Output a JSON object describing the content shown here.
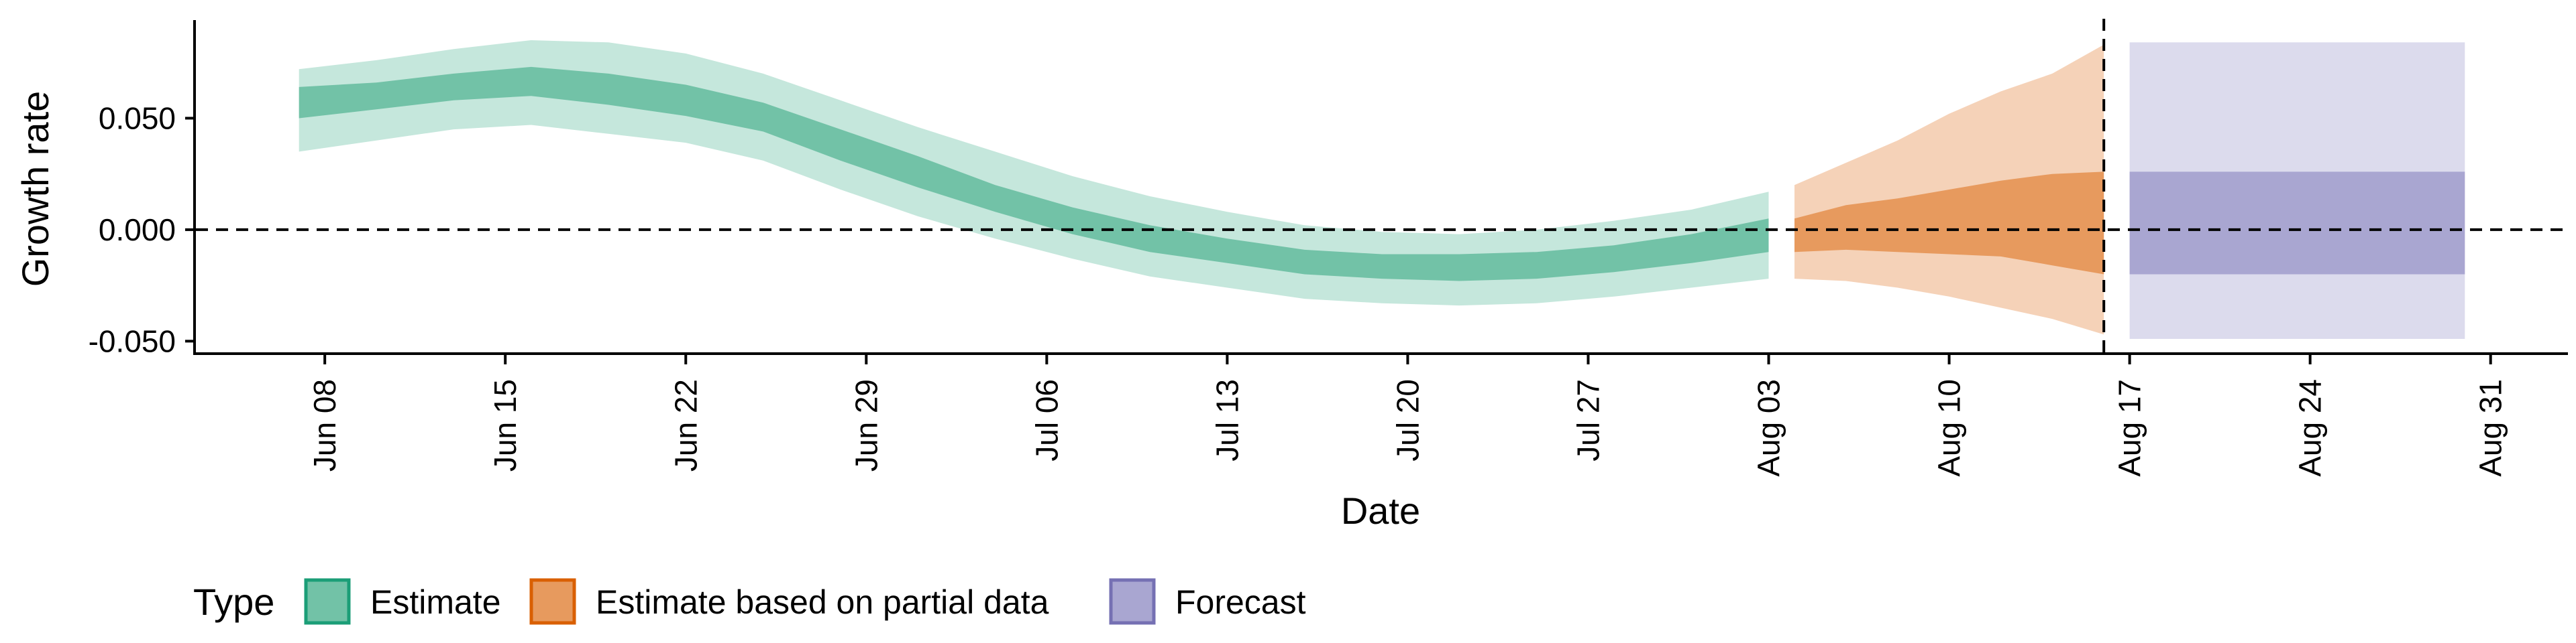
{
  "chart_data": {
    "type": "area",
    "xlabel": "Date",
    "ylabel": "Growth rate",
    "x_ticks": [
      "Jun 08",
      "Jun 15",
      "Jun 22",
      "Jun 29",
      "Jul 06",
      "Jul 13",
      "Jul 20",
      "Jul 27",
      "Aug 03",
      "Aug 10",
      "Aug 17",
      "Aug 24",
      "Aug 31"
    ],
    "y_ticks": [
      "0.050",
      "0.000",
      "-0.050"
    ],
    "y_tick_values": [
      0.05,
      0.0,
      -0.05
    ],
    "xlim": [
      "2020-06-03",
      "2020-09-03"
    ],
    "ylim": [
      -0.055,
      0.094
    ],
    "reference_lines": [
      {
        "axis": "y",
        "value": 0.0,
        "style": "dashed"
      },
      {
        "axis": "x",
        "value": "2020-08-16",
        "style": "dashed"
      }
    ],
    "legend": {
      "title": "Type",
      "position": "bottom",
      "entries": [
        {
          "label": "Estimate",
          "fill": "#72c2a7",
          "stroke": "#1b9e77"
        },
        {
          "label": "Estimate based on partial data",
          "fill": "#e79a5e",
          "stroke": "#d95f02"
        },
        {
          "label": "Forecast",
          "fill": "#a9a6d1",
          "stroke": "#7570b3"
        }
      ]
    },
    "series": [
      {
        "name": "Estimate",
        "type": "ribbon",
        "color_inner": "#72c2a7",
        "color_outer": "#c5e7dc",
        "x": [
          "2020-06-07",
          "2020-06-10",
          "2020-06-13",
          "2020-06-16",
          "2020-06-19",
          "2020-06-22",
          "2020-06-25",
          "2020-06-28",
          "2020-07-01",
          "2020-07-04",
          "2020-07-07",
          "2020-07-10",
          "2020-07-13",
          "2020-07-16",
          "2020-07-19",
          "2020-07-22",
          "2020-07-25",
          "2020-07-28",
          "2020-07-31",
          "2020-08-03"
        ],
        "outer_upper": [
          0.072,
          0.076,
          0.081,
          0.085,
          0.084,
          0.079,
          0.07,
          0.058,
          0.046,
          0.035,
          0.024,
          0.015,
          0.008,
          0.002,
          -0.001,
          -0.002,
          0.0,
          0.004,
          0.009,
          0.017
        ],
        "inner_upper": [
          0.064,
          0.066,
          0.07,
          0.073,
          0.07,
          0.065,
          0.057,
          0.045,
          0.033,
          0.02,
          0.01,
          0.002,
          -0.004,
          -0.009,
          -0.011,
          -0.011,
          -0.01,
          -0.007,
          -0.002,
          0.005
        ],
        "inner_lower": [
          0.05,
          0.054,
          0.058,
          0.06,
          0.056,
          0.051,
          0.044,
          0.031,
          0.019,
          0.008,
          -0.002,
          -0.01,
          -0.015,
          -0.02,
          -0.022,
          -0.023,
          -0.022,
          -0.019,
          -0.015,
          -0.01
        ],
        "outer_lower": [
          0.035,
          0.04,
          0.045,
          0.047,
          0.043,
          0.039,
          0.031,
          0.018,
          0.006,
          -0.004,
          -0.013,
          -0.021,
          -0.026,
          -0.031,
          -0.033,
          -0.034,
          -0.033,
          -0.03,
          -0.026,
          -0.022
        ]
      },
      {
        "name": "Estimate based on partial data",
        "type": "ribbon",
        "color_inner": "#e79a5e",
        "color_outer": "#f5d2b8",
        "x": [
          "2020-08-04",
          "2020-08-06",
          "2020-08-08",
          "2020-08-10",
          "2020-08-12",
          "2020-08-14",
          "2020-08-16"
        ],
        "outer_upper": [
          0.02,
          0.03,
          0.04,
          0.052,
          0.062,
          0.07,
          0.083
        ],
        "inner_upper": [
          0.005,
          0.011,
          0.014,
          0.018,
          0.022,
          0.025,
          0.026
        ],
        "inner_lower": [
          -0.01,
          -0.009,
          -0.01,
          -0.011,
          -0.012,
          -0.016,
          -0.02
        ],
        "outer_lower": [
          -0.022,
          -0.023,
          -0.026,
          -0.03,
          -0.035,
          -0.04,
          -0.047
        ]
      },
      {
        "name": "Forecast",
        "type": "ribbon",
        "color_inner": "#a9a6d1",
        "color_outer": "#dcdbed",
        "x": [
          "2020-08-17",
          "2020-08-30"
        ],
        "outer_upper": [
          0.084,
          0.084
        ],
        "inner_upper": [
          0.026,
          0.026
        ],
        "inner_lower": [
          -0.02,
          -0.02
        ],
        "outer_lower": [
          -0.049,
          -0.049
        ]
      }
    ]
  }
}
